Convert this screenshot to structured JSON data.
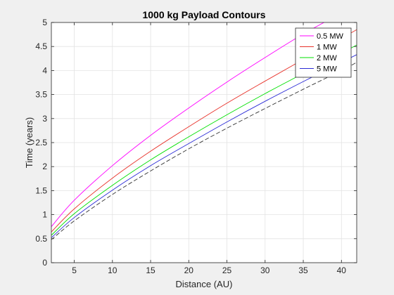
{
  "chart_data": {
    "type": "line",
    "title": "1000 kg Payload Contours",
    "xlabel": "Distance (AU)",
    "ylabel": "Time (years)",
    "xlim": [
      2,
      42
    ],
    "ylim": [
      0,
      5
    ],
    "xticks": [
      5,
      10,
      15,
      20,
      25,
      30,
      35,
      40
    ],
    "yticks": [
      0,
      0.5,
      1,
      1.5,
      2,
      2.5,
      3,
      3.5,
      4,
      4.5,
      5
    ],
    "ytick_labels": [
      "0",
      "0.5",
      "1",
      "1.5",
      "2",
      "2.5",
      "3",
      "3.5",
      "4",
      "4.5",
      "5"
    ],
    "grid": true,
    "legend_position": "top-right",
    "x": [
      2,
      5,
      10,
      15,
      20,
      25,
      30,
      35,
      40,
      42
    ],
    "series": [
      {
        "name": "0.5 MW",
        "color": "#ff00ff",
        "style": "solid",
        "values": [
          0.75,
          1.3,
          2.02,
          2.65,
          3.22,
          3.76,
          4.27,
          4.76,
          5.2,
          5.4
        ]
      },
      {
        "name": "1 MW",
        "color": "#e8322a",
        "style": "solid",
        "values": [
          0.64,
          1.12,
          1.76,
          2.32,
          2.83,
          3.32,
          3.78,
          4.23,
          4.67,
          4.85
        ]
      },
      {
        "name": "2 MW",
        "color": "#00e000",
        "style": "solid",
        "values": [
          0.57,
          1.02,
          1.61,
          2.14,
          2.62,
          3.08,
          3.52,
          3.94,
          4.36,
          4.53
        ]
      },
      {
        "name": "5 MW",
        "color": "#2b2bd6",
        "style": "solid",
        "values": [
          0.52,
          0.94,
          1.51,
          2.02,
          2.48,
          2.93,
          3.36,
          3.77,
          4.17,
          4.33
        ]
      },
      {
        "color": "#333333",
        "style": "dashed",
        "values": [
          0.48,
          0.87,
          1.42,
          1.91,
          2.37,
          2.8,
          3.21,
          3.61,
          4.0,
          4.17
        ]
      }
    ]
  }
}
